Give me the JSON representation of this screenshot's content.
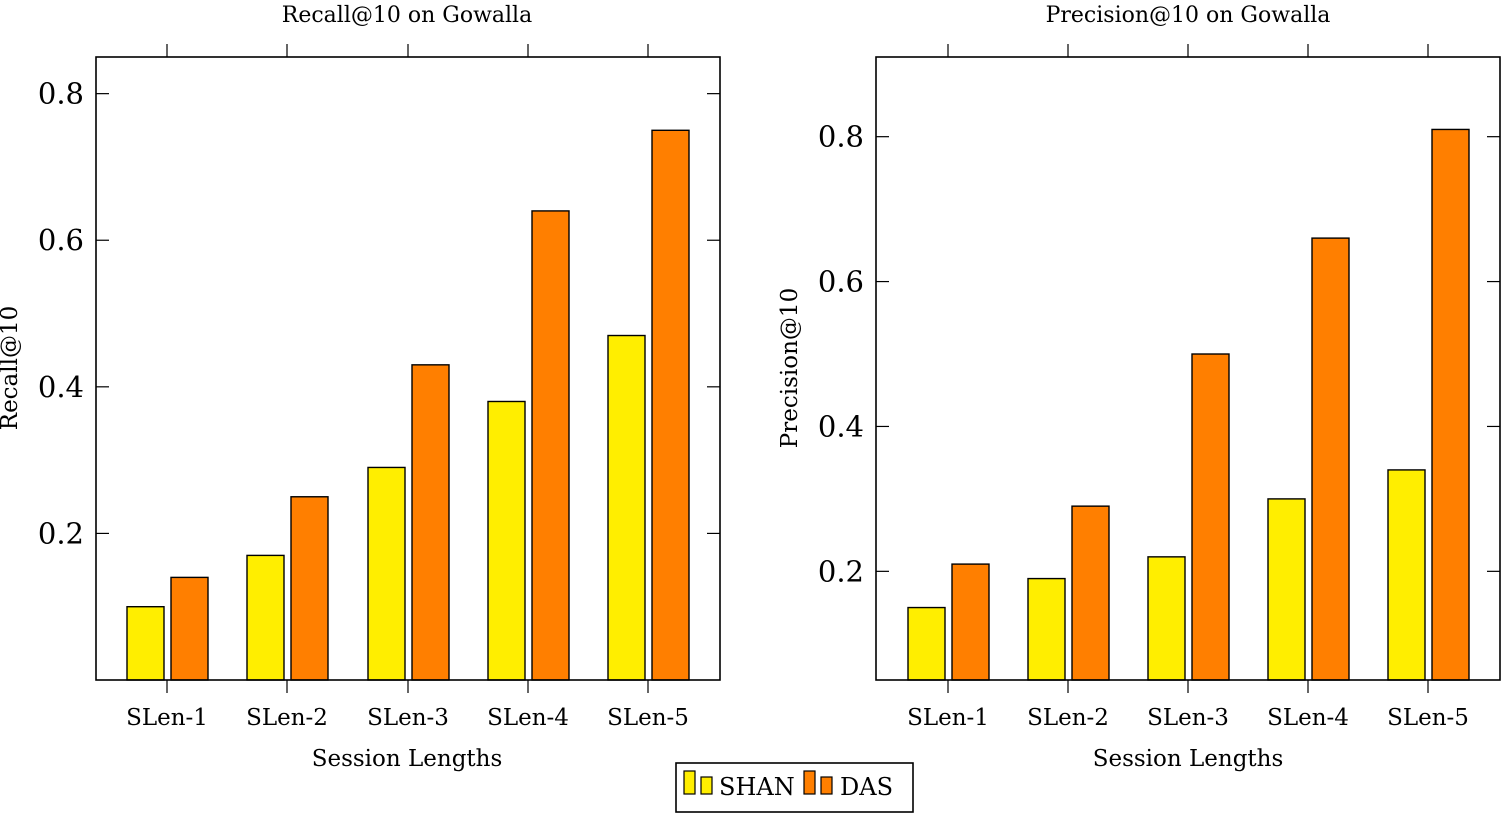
{
  "chart_data": [
    {
      "type": "bar",
      "title": "Recall@10 on Gowalla",
      "xlabel": "Session Lengths",
      "ylabel": "Recall@10",
      "categories": [
        "SLen-1",
        "SLen-2",
        "SLen-3",
        "SLen-4",
        "SLen-5"
      ],
      "series": [
        {
          "name": "SHAN",
          "values": [
            0.1,
            0.17,
            0.29,
            0.38,
            0.47
          ]
        },
        {
          "name": "DAS",
          "values": [
            0.14,
            0.25,
            0.43,
            0.64,
            0.75
          ]
        }
      ],
      "ylim": [
        0,
        0.85
      ],
      "yticks": [
        0.2,
        0.4,
        0.6,
        0.8
      ],
      "ytick_labels": [
        "0.2",
        "0.4",
        "0.6",
        "0.8"
      ],
      "grid": false
    },
    {
      "type": "bar",
      "title": "Precision@10 on Gowalla",
      "xlabel": "Session Lengths",
      "ylabel": "Precision@10",
      "categories": [
        "SLen-1",
        "SLen-2",
        "SLen-3",
        "SLen-4",
        "SLen-5"
      ],
      "series": [
        {
          "name": "SHAN",
          "values": [
            0.15,
            0.19,
            0.22,
            0.3,
            0.34
          ]
        },
        {
          "name": "DAS",
          "values": [
            0.21,
            0.29,
            0.5,
            0.66,
            0.81
          ]
        }
      ],
      "ylim": [
        0.05,
        0.91
      ],
      "yticks": [
        0.2,
        0.4,
        0.6,
        0.8
      ],
      "ytick_labels": [
        "0.2",
        "0.4",
        "0.6",
        "0.8"
      ],
      "grid": false
    }
  ],
  "legend": {
    "position": "bottom-center",
    "entries": [
      {
        "name": "SHAN",
        "label": "SHAN",
        "color": "#ffee00"
      },
      {
        "name": "DAS",
        "label": "DAS",
        "color": "#ff7f00"
      }
    ]
  },
  "colors": {
    "SHAN": "#ffee00",
    "DAS": "#ff7f00",
    "stroke": "#000000"
  }
}
